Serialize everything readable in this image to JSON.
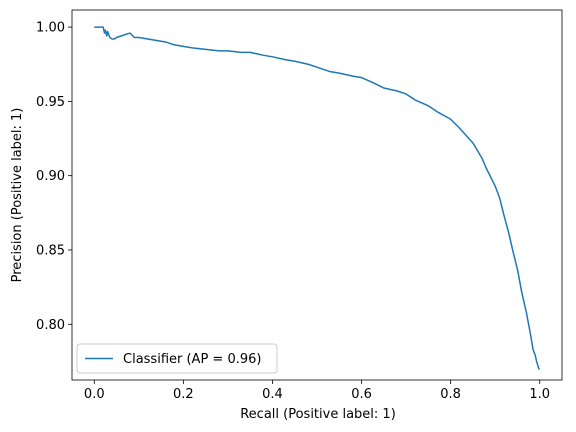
{
  "chart_data": {
    "type": "line",
    "title": "",
    "xlabel": "Recall (Positive label: 1)",
    "ylabel": "Precision (Positive label: 1)",
    "xlim": [
      -0.05,
      1.05
    ],
    "ylim": [
      0.7625,
      1.0115
    ],
    "xticks": [
      0.0,
      0.2,
      0.4,
      0.6,
      0.8,
      1.0
    ],
    "xtick_labels": [
      "0.0",
      "0.2",
      "0.4",
      "0.6",
      "0.8",
      "1.0"
    ],
    "yticks": [
      0.8,
      0.85,
      0.9,
      0.95,
      1.0
    ],
    "ytick_labels": [
      "0.80",
      "0.85",
      "0.90",
      "0.95",
      "1.00"
    ],
    "grid": false,
    "legend_position": "lower-left",
    "series": [
      {
        "name": "Classifier (AP = 0.96)",
        "color": "#1f77b4",
        "x": [
          0.0,
          0.01,
          0.02,
          0.023,
          0.025,
          0.028,
          0.03,
          0.035,
          0.04,
          0.045,
          0.05,
          0.06,
          0.07,
          0.08,
          0.09,
          0.1,
          0.12,
          0.14,
          0.16,
          0.18,
          0.2,
          0.22,
          0.25,
          0.28,
          0.3,
          0.33,
          0.35,
          0.38,
          0.4,
          0.43,
          0.45,
          0.48,
          0.5,
          0.53,
          0.55,
          0.58,
          0.6,
          0.63,
          0.65,
          0.68,
          0.7,
          0.72,
          0.75,
          0.77,
          0.8,
          0.82,
          0.85,
          0.87,
          0.88,
          0.9,
          0.91,
          0.92,
          0.93,
          0.94,
          0.95,
          0.96,
          0.97,
          0.975,
          0.98,
          0.985,
          0.99,
          0.993,
          0.996,
          0.998,
          1.0
        ],
        "y": [
          1.0,
          1.0,
          1.0,
          0.996,
          0.998,
          0.994,
          0.997,
          0.993,
          0.992,
          0.992,
          0.993,
          0.994,
          0.995,
          0.996,
          0.993,
          0.993,
          0.992,
          0.991,
          0.99,
          0.988,
          0.987,
          0.986,
          0.985,
          0.984,
          0.984,
          0.983,
          0.983,
          0.981,
          0.98,
          0.978,
          0.977,
          0.975,
          0.973,
          0.97,
          0.969,
          0.967,
          0.966,
          0.962,
          0.959,
          0.957,
          0.955,
          0.951,
          0.947,
          0.943,
          0.938,
          0.932,
          0.922,
          0.912,
          0.905,
          0.893,
          0.885,
          0.873,
          0.862,
          0.849,
          0.837,
          0.821,
          0.808,
          0.8,
          0.792,
          0.783,
          0.779,
          0.775,
          0.772,
          0.77,
          0.77
        ]
      }
    ]
  }
}
